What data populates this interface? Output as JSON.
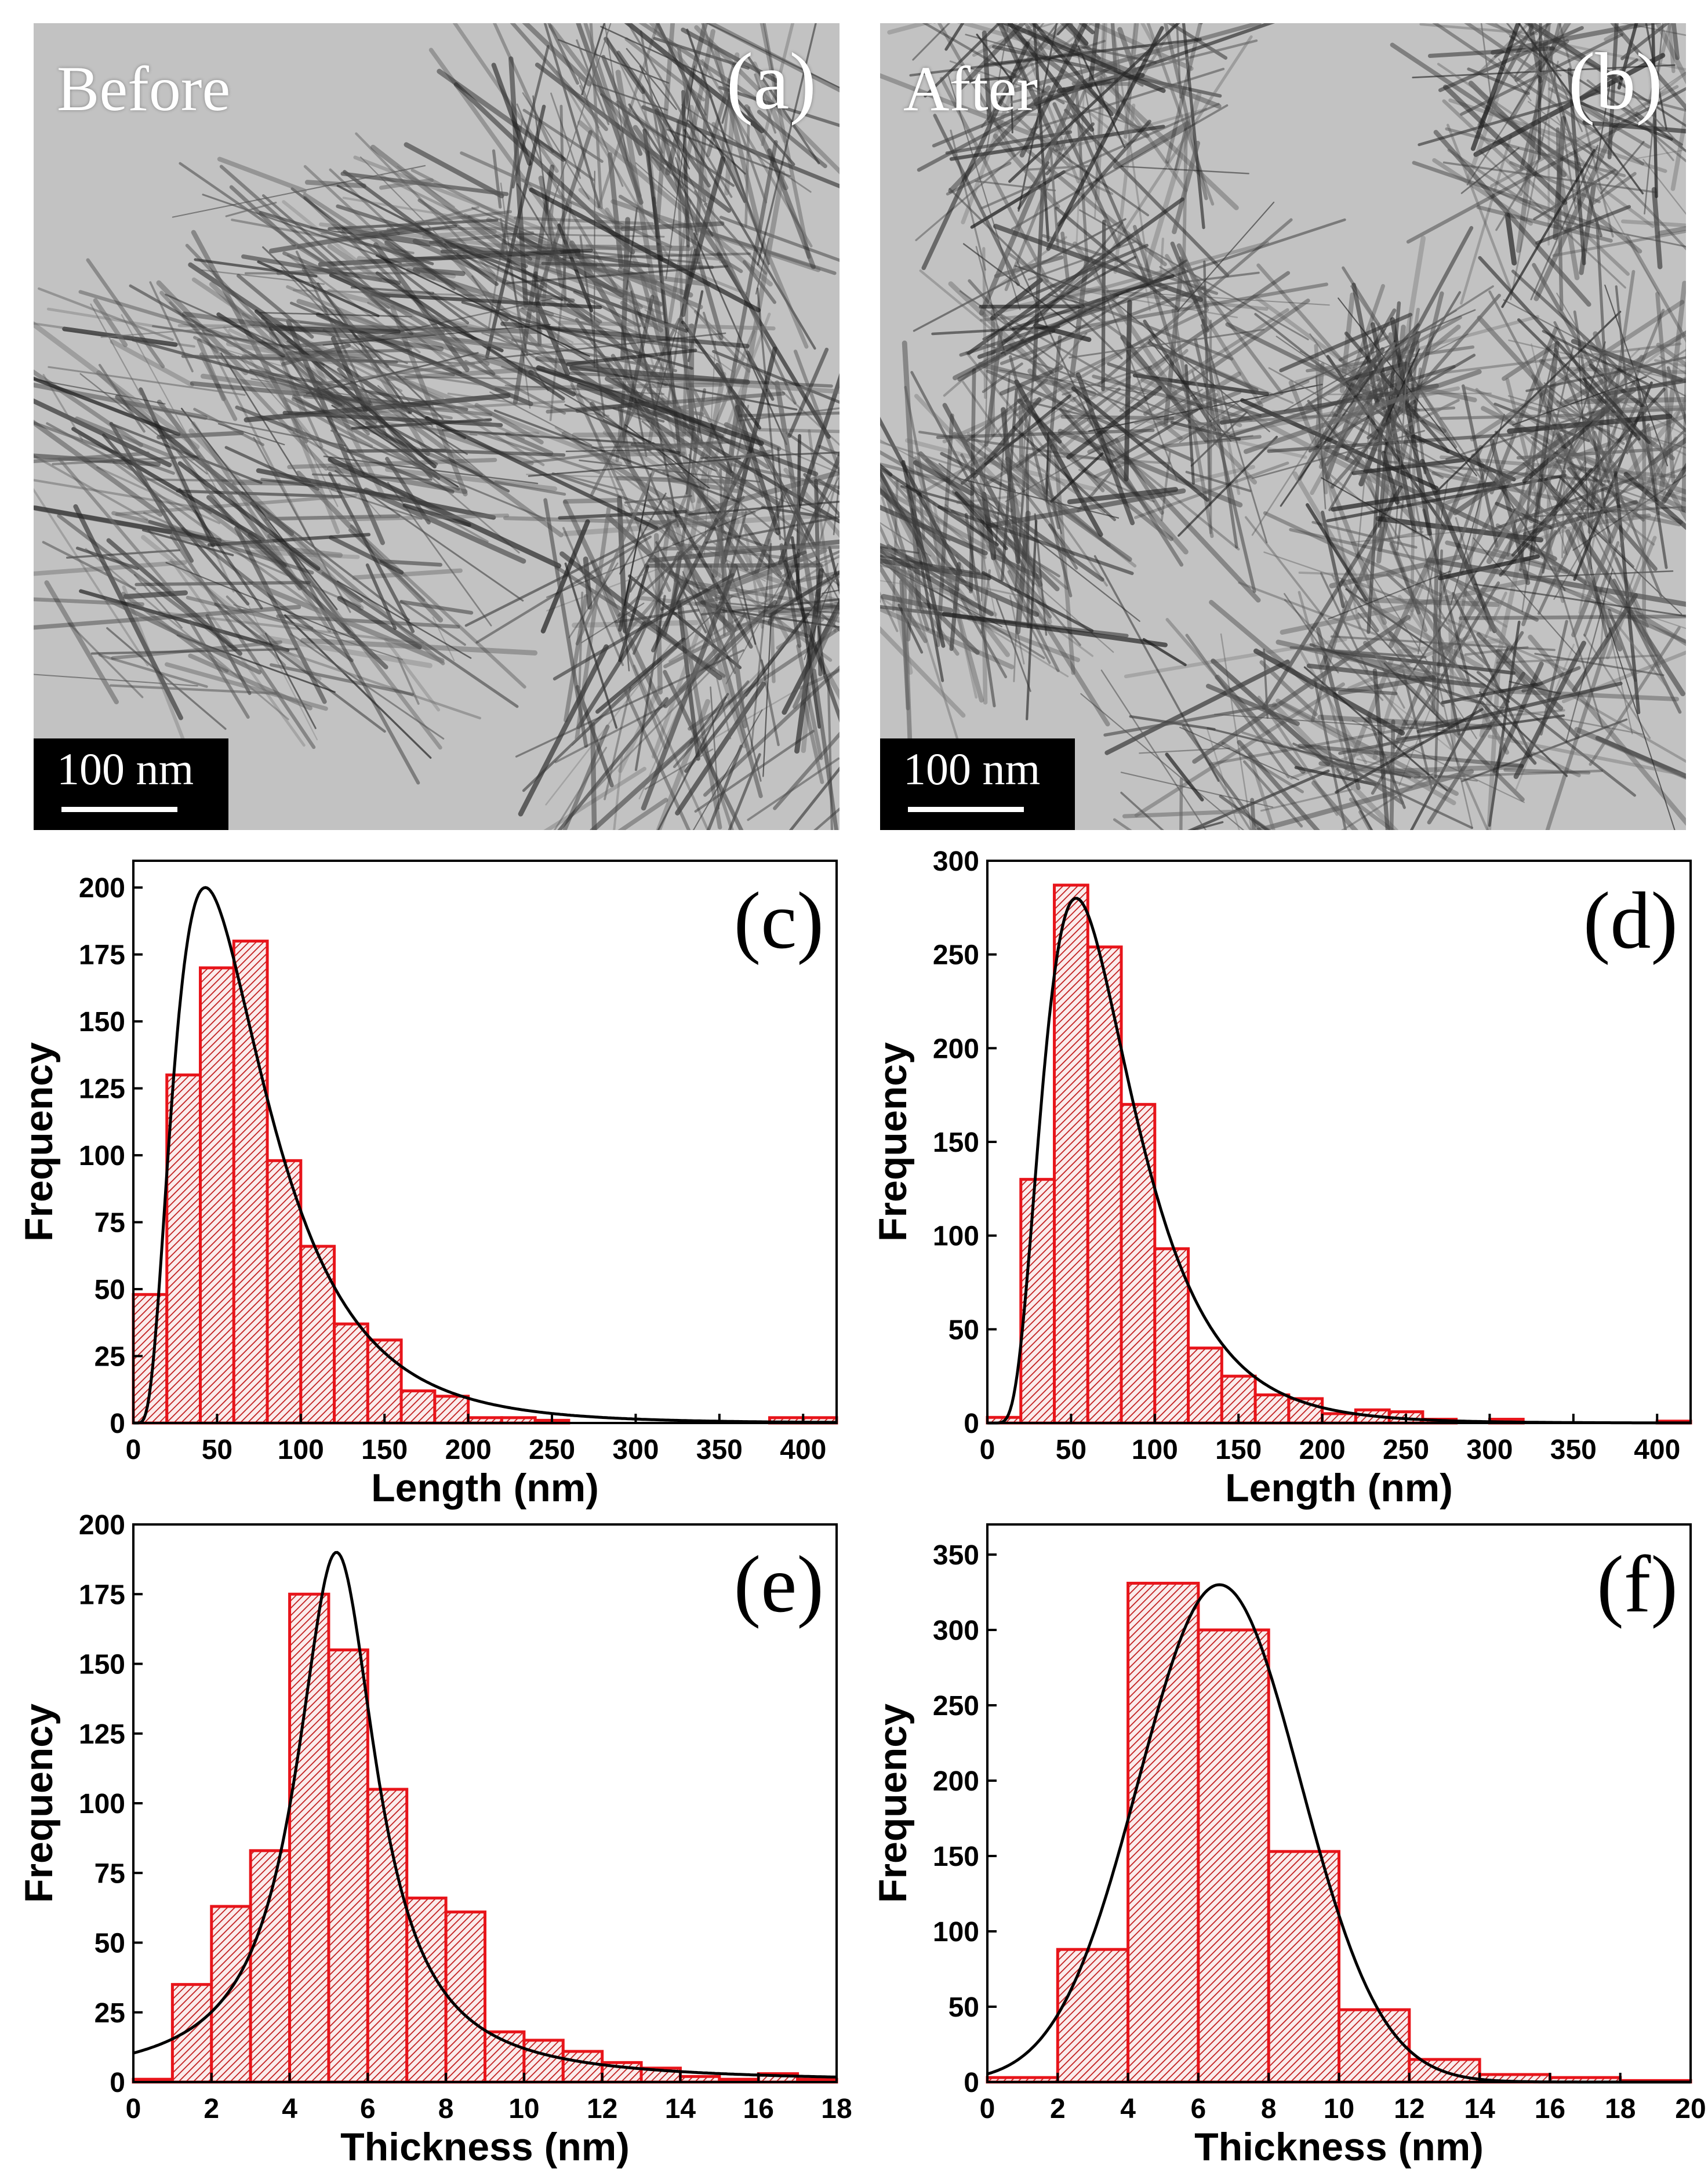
{
  "tem_panels": [
    {
      "label": "(a)",
      "condition": "Before",
      "scale_bar": "100 nm"
    },
    {
      "label": "(b)",
      "condition": "After",
      "scale_bar": "100 nm"
    }
  ],
  "colors": {
    "bar_edge": "#e8141a",
    "bar_hatch": "#c01a1a",
    "fit": "#000000"
  },
  "chart_data": [
    {
      "type": "bar",
      "panel": "(c)",
      "title": "",
      "xlabel": "Length (nm)",
      "ylabel": "Frequency",
      "xlim": [
        0,
        420
      ],
      "ylim": [
        0,
        210
      ],
      "xticks": [
        0,
        50,
        100,
        150,
        200,
        250,
        300,
        350,
        400
      ],
      "yticks": [
        0,
        25,
        50,
        75,
        100,
        125,
        150,
        175,
        200
      ],
      "bin_width": 20,
      "bins": [
        [
          0,
          48
        ],
        [
          20,
          130
        ],
        [
          40,
          170
        ],
        [
          60,
          180
        ],
        [
          80,
          98
        ],
        [
          100,
          66
        ],
        [
          120,
          37
        ],
        [
          140,
          31
        ],
        [
          160,
          12
        ],
        [
          180,
          10
        ],
        [
          200,
          2
        ],
        [
          220,
          2
        ],
        [
          240,
          1
        ],
        [
          260,
          0
        ],
        [
          280,
          0
        ],
        [
          300,
          0
        ],
        [
          320,
          0
        ],
        [
          340,
          0
        ],
        [
          360,
          0
        ],
        [
          380,
          2
        ],
        [
          400,
          2
        ]
      ],
      "fit": {
        "type": "lognormal",
        "peak_x": 43,
        "peak_y": 200,
        "sigma": 0.62
      }
    },
    {
      "type": "bar",
      "panel": "(d)",
      "title": "",
      "xlabel": "Length (nm)",
      "ylabel": "Frequency",
      "xlim": [
        0,
        420
      ],
      "ylim": [
        0,
        300
      ],
      "xticks": [
        0,
        50,
        100,
        150,
        200,
        250,
        300,
        350,
        400
      ],
      "yticks": [
        0,
        50,
        100,
        150,
        200,
        250,
        300
      ],
      "bin_width": 20,
      "bins": [
        [
          0,
          3
        ],
        [
          20,
          130
        ],
        [
          40,
          287
        ],
        [
          60,
          254
        ],
        [
          80,
          170
        ],
        [
          100,
          93
        ],
        [
          120,
          40
        ],
        [
          140,
          25
        ],
        [
          160,
          15
        ],
        [
          180,
          13
        ],
        [
          200,
          5
        ],
        [
          220,
          7
        ],
        [
          240,
          6
        ],
        [
          260,
          2
        ],
        [
          280,
          0
        ],
        [
          300,
          2
        ],
        [
          320,
          0
        ],
        [
          340,
          0
        ],
        [
          360,
          0
        ],
        [
          380,
          0
        ],
        [
          400,
          1
        ]
      ],
      "fit": {
        "type": "lognormal",
        "peak_x": 53,
        "peak_y": 280,
        "sigma": 0.5
      }
    },
    {
      "type": "bar",
      "panel": "(e)",
      "title": "",
      "xlabel": "Thickness (nm)",
      "ylabel": "Frequency",
      "xlim": [
        0,
        18
      ],
      "ylim": [
        0,
        200
      ],
      "xticks": [
        0,
        2,
        4,
        6,
        8,
        10,
        12,
        14,
        16,
        18
      ],
      "yticks": [
        0,
        25,
        50,
        75,
        100,
        125,
        150,
        175,
        200
      ],
      "bin_width": 1,
      "bins": [
        [
          0,
          1
        ],
        [
          1,
          35
        ],
        [
          2,
          63
        ],
        [
          3,
          83
        ],
        [
          4,
          175
        ],
        [
          5,
          155
        ],
        [
          6,
          105
        ],
        [
          7,
          66
        ],
        [
          8,
          61
        ],
        [
          9,
          18
        ],
        [
          10,
          15
        ],
        [
          11,
          11
        ],
        [
          12,
          7
        ],
        [
          13,
          5
        ],
        [
          14,
          2
        ],
        [
          15,
          1
        ],
        [
          16,
          3
        ],
        [
          17,
          1
        ]
      ],
      "fit": {
        "type": "lorentzian",
        "center": 5.2,
        "peak_y": 190,
        "hwhm": 1.25
      }
    },
    {
      "type": "bar",
      "panel": "(f)",
      "title": "",
      "xlabel": "Thickness (nm)",
      "ylabel": "Frequency",
      "xlim": [
        0,
        20
      ],
      "ylim": [
        0,
        370
      ],
      "xticks": [
        0,
        2,
        4,
        6,
        8,
        10,
        12,
        14,
        16,
        18,
        20
      ],
      "yticks": [
        0,
        50,
        100,
        150,
        200,
        250,
        300,
        350
      ],
      "bin_width": 2,
      "bins": [
        [
          0,
          3
        ],
        [
          2,
          88
        ],
        [
          4,
          331
        ],
        [
          6,
          300
        ],
        [
          8,
          153
        ],
        [
          10,
          48
        ],
        [
          12,
          15
        ],
        [
          14,
          5
        ],
        [
          16,
          3
        ],
        [
          18,
          1
        ]
      ],
      "fit": {
        "type": "gaussian",
        "center": 6.6,
        "peak_y": 330,
        "sigma": 2.3
      }
    }
  ]
}
